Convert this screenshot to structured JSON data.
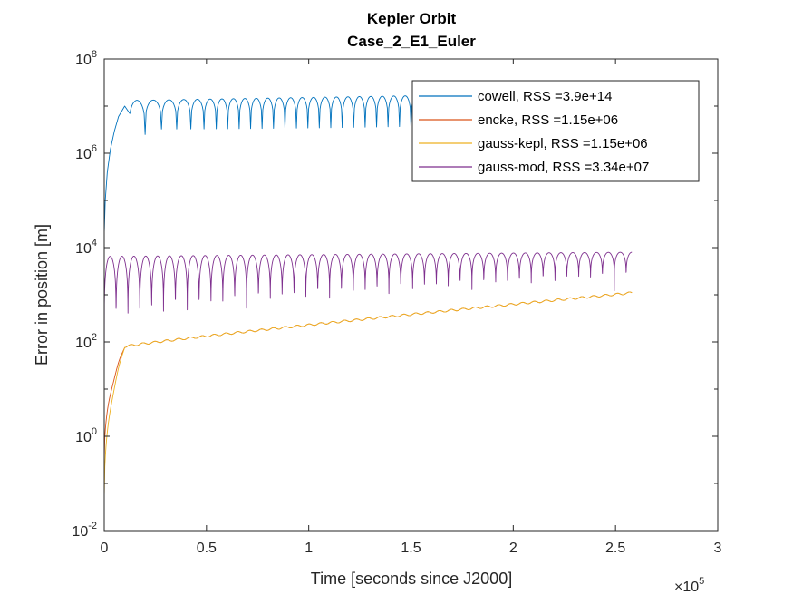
{
  "chart_data": {
    "type": "line",
    "title": [
      "Kepler Orbit",
      "Case_2_E1_Euler"
    ],
    "xlabel": "Time [seconds since J2000]",
    "ylabel": "Error in position [m]",
    "x_exponent_label": "10",
    "x_exponent_power": "5",
    "xlim": [
      0,
      300000
    ],
    "ylim": [
      0.01,
      100000000
    ],
    "yscale": "log",
    "x_ticks": [
      0,
      50000,
      100000,
      150000,
      200000,
      250000,
      300000
    ],
    "x_tick_labels": [
      "0",
      "0.5",
      "1",
      "1.5",
      "2",
      "2.5",
      "3"
    ],
    "y_ticks": [
      0.01,
      1,
      100,
      10000,
      1000000,
      100000000
    ],
    "y_tick_labels": [
      {
        "base": "10",
        "exp": "-2"
      },
      {
        "base": "10",
        "exp": "0"
      },
      {
        "base": "10",
        "exp": "2"
      },
      {
        "base": "10",
        "exp": "4"
      },
      {
        "base": "10",
        "exp": "6"
      },
      {
        "base": "10",
        "exp": "8"
      }
    ],
    "grid": false,
    "legend_position": "top-right",
    "series": [
      {
        "name": "cowell, RSS =3.9e+14",
        "color": "#0072BD",
        "shape": "cowell",
        "x_end": 258000,
        "envelope_start": 13000000,
        "envelope_end": 20000000,
        "trough": 2500000,
        "initial_value": 20000
      },
      {
        "name": "encke, RSS =1.15e+06",
        "color": "#D95319",
        "shape": "growth",
        "x_end": 258000,
        "start_value": 0.3,
        "value_at_1e4": 80,
        "end_value": 1100
      },
      {
        "name": "gauss-kepl, RSS =1.15e+06",
        "color": "#EDB120",
        "shape": "growth",
        "x_end": 258000,
        "start_value": 0.05,
        "value_at_1e4": 80,
        "end_value": 1100
      },
      {
        "name": "gauss-mod, RSS =3.34e+07",
        "color": "#7E2F8E",
        "shape": "oscillating",
        "x_end": 258000,
        "period": 5800,
        "peak_start": 6500,
        "peak_end": 8000,
        "trough_start": 40,
        "trough_end": 1300
      }
    ]
  }
}
